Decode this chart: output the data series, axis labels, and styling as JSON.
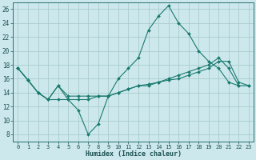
{
  "xlabel": "Humidex (Indice chaleur)",
  "bg_color": "#cce8ec",
  "grid_color": "#aacccc",
  "line_color": "#1a7a6e",
  "xlim": [
    -0.5,
    23.5
  ],
  "ylim": [
    7,
    27
  ],
  "xticks": [
    0,
    1,
    2,
    3,
    4,
    5,
    6,
    7,
    8,
    9,
    10,
    11,
    12,
    13,
    14,
    15,
    16,
    17,
    18,
    19,
    20,
    21,
    22,
    23
  ],
  "yticks": [
    8,
    10,
    12,
    14,
    16,
    18,
    20,
    22,
    24,
    26
  ],
  "line1_x": [
    0,
    1,
    2,
    3,
    4,
    5,
    6,
    7,
    8,
    9,
    10,
    11,
    12,
    13,
    14,
    15,
    16,
    17,
    18,
    19,
    20,
    21,
    22,
    23
  ],
  "line1_y": [
    17.5,
    15.8,
    14.0,
    13.0,
    13.0,
    13.0,
    11.5,
    8.0,
    9.5,
    13.5,
    16.0,
    17.5,
    19.0,
    23.0,
    25.0,
    26.5,
    24.0,
    22.5,
    20.0,
    18.5,
    17.5,
    15.5,
    15.0,
    null
  ],
  "line2_x": [
    0,
    1,
    2,
    3,
    4,
    5,
    6,
    7,
    8,
    9,
    10,
    11,
    12,
    13,
    14,
    15,
    16,
    17,
    18,
    19,
    20,
    21,
    22,
    23
  ],
  "line2_y": [
    17.5,
    15.8,
    14.0,
    13.0,
    15.0,
    13.0,
    13.0,
    13.0,
    13.5,
    13.5,
    14.0,
    14.5,
    15.0,
    15.0,
    15.5,
    16.0,
    16.5,
    17.0,
    17.5,
    18.0,
    19.0,
    17.5,
    15.0,
    15.0
  ],
  "line3_x": [
    0,
    1,
    2,
    3,
    4,
    5,
    6,
    7,
    8,
    9,
    10,
    11,
    12,
    13,
    14,
    15,
    16,
    17,
    18,
    19,
    20,
    21,
    22,
    23
  ],
  "line3_y": [
    17.5,
    15.8,
    14.0,
    13.0,
    15.0,
    13.5,
    13.5,
    13.5,
    13.5,
    13.5,
    14.0,
    14.5,
    15.0,
    15.2,
    15.5,
    15.8,
    16.0,
    16.5,
    17.0,
    17.5,
    18.5,
    18.5,
    15.5,
    15.0
  ]
}
